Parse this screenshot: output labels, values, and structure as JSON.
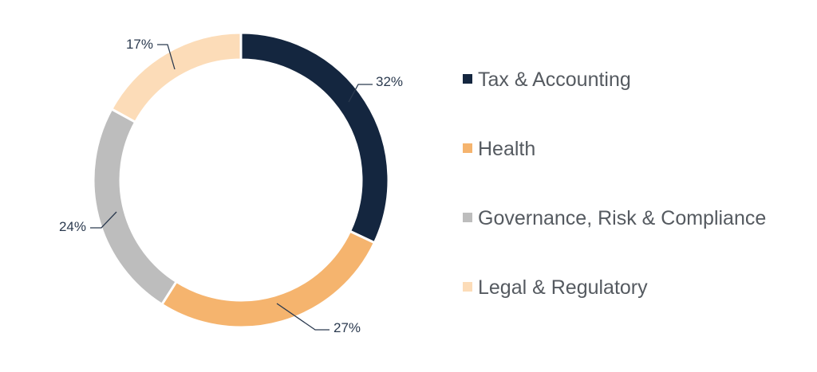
{
  "chart_data": {
    "type": "pie",
    "donut": true,
    "categories": [
      "Tax & Accounting",
      "Health",
      "Governance, Risk & Compliance",
      "Legal & Regulatory"
    ],
    "values": [
      32,
      27,
      24,
      17
    ],
    "labels": [
      "32%",
      "27%",
      "24%",
      "17%"
    ],
    "colors": [
      "#14263f",
      "#f5b46e",
      "#bdbdbd",
      "#fcdcb8"
    ],
    "unit": "%",
    "legend_position": "right"
  }
}
